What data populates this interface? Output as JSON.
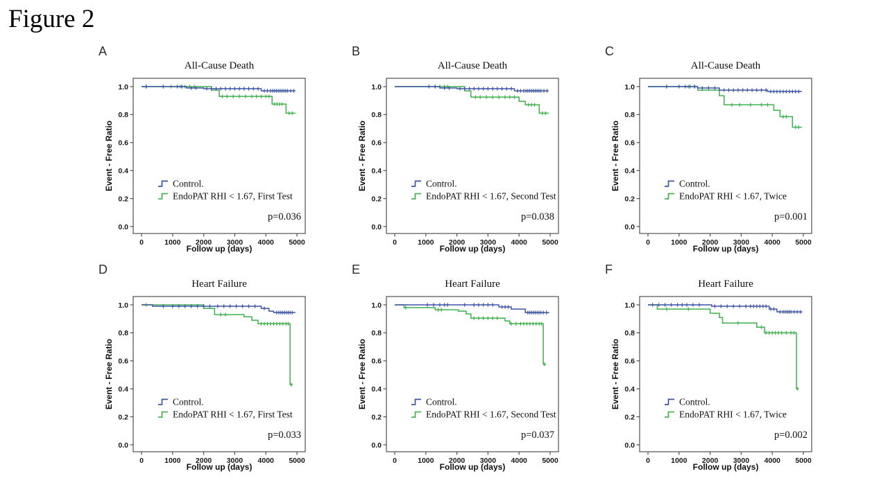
{
  "figure_label": "Figure 2",
  "chart_data": {
    "type": "line",
    "subtype": "kaplan-meier-step",
    "grid": false,
    "legend_position": "inside-left-lower",
    "x_label": "Follow up (days)",
    "y_label": "Event - Free Ratio",
    "x_range": [
      0,
      5000
    ],
    "y_range": [
      0.0,
      1.0
    ],
    "x_ticks": {
      "values": [
        0,
        1000,
        2000,
        3000,
        4000,
        5000
      ],
      "labels": [
        "0",
        "1000",
        "2000",
        "3000",
        "4000",
        "5000"
      ]
    },
    "y_ticks": {
      "values": [
        0.0,
        0.2,
        0.4,
        0.6,
        0.8,
        1.0
      ],
      "labels": [
        "0.0",
        "0.2",
        "0.4",
        "0.6",
        "0.8",
        "1.0"
      ]
    },
    "colors": {
      "control": "#3c55a5",
      "endopat": "#3cb14b",
      "frame": "#4f4f4f",
      "text": "#0e0e0e"
    },
    "panels": [
      {
        "letter": "A",
        "title": "All-Cause Death",
        "p_label": "p=0.036",
        "series": [
          {
            "name": "Control.",
            "color": "control",
            "steps": [
              [
                0,
                1.0
              ],
              [
                1450,
                0.99
              ],
              [
                2000,
                0.985
              ],
              [
                3850,
                0.97
              ],
              [
                4950,
                0.97
              ]
            ],
            "censors": [
              150,
              700,
              1150,
              1300,
              1600,
              1750,
              2100,
              2250,
              2400,
              2550,
              2700,
              2850,
              3000,
              3150,
              3300,
              3450,
              3600,
              3750,
              3950,
              4050,
              4150,
              4220,
              4280,
              4340,
              4400,
              4460,
              4520,
              4580,
              4640,
              4700,
              4800,
              4900
            ]
          },
          {
            "name": "EndoPAT RHI < 1.67,  First Test",
            "color": "endopat",
            "steps": [
              [
                0,
                1.0
              ],
              [
                2250,
                0.975
              ],
              [
                2500,
                0.93
              ],
              [
                4200,
                0.875
              ],
              [
                4650,
                0.81
              ],
              [
                4950,
                0.81
              ]
            ],
            "censors": [
              150,
              950,
              1250,
              1400,
              1550,
              1700,
              2600,
              2750,
              2950,
              3150,
              3350,
              3550,
              3700,
              3850,
              4000,
              4100,
              4280,
              4360,
              4440,
              4520,
              4750,
              4850
            ]
          }
        ]
      },
      {
        "letter": "B",
        "title": "All-Cause Death",
        "p_label": "p=0.038",
        "series": [
          {
            "name": "Control.",
            "color": "control",
            "steps": [
              [
                0,
                1.0
              ],
              [
                1450,
                0.99
              ],
              [
                2000,
                0.985
              ],
              [
                3850,
                0.97
              ],
              [
                4950,
                0.97
              ]
            ],
            "censors": [
              1100,
              1300,
              1600,
              1750,
              2100,
              2250,
              2400,
              2550,
              2700,
              2850,
              3000,
              3150,
              3300,
              3450,
              3600,
              3750,
              3950,
              4050,
              4150,
              4220,
              4280,
              4340,
              4400,
              4460,
              4520,
              4580,
              4640,
              4700,
              4800,
              4900
            ]
          },
          {
            "name": "EndoPAT RHI < 1.67,  Second Test",
            "color": "endopat",
            "steps": [
              [
                0,
                1.0
              ],
              [
                2250,
                0.97
              ],
              [
                2450,
                0.925
              ],
              [
                4000,
                0.895
              ],
              [
                4200,
                0.87
              ],
              [
                4650,
                0.81
              ],
              [
                4950,
                0.81
              ]
            ],
            "censors": [
              1300,
              1450,
              1600,
              1700,
              2600,
              2750,
              2950,
              3150,
              3350,
              3550,
              3700,
              3850,
              4300,
              4400,
              4500,
              4750,
              4850
            ]
          }
        ]
      },
      {
        "letter": "C",
        "title": "All-Cause Death",
        "p_label": "p=0.001",
        "series": [
          {
            "name": "Control.",
            "color": "control",
            "steps": [
              [
                0,
                1.0
              ],
              [
                1600,
                0.99
              ],
              [
                2300,
                0.975
              ],
              [
                3850,
                0.965
              ],
              [
                4950,
                0.965
              ]
            ],
            "censors": [
              600,
              1000,
              1200,
              1350,
              1500,
              1750,
              1950,
              2150,
              2450,
              2600,
              2750,
              2900,
              3050,
              3200,
              3350,
              3500,
              3650,
              3800,
              3950,
              4050,
              4150,
              4250,
              4350,
              4450,
              4550,
              4650,
              4750,
              4850
            ]
          },
          {
            "name": "EndoPAT RHI < 1.67,  Twice",
            "color": "endopat",
            "steps": [
              [
                0,
                1.0
              ],
              [
                1600,
                0.975
              ],
              [
                2300,
                0.935
              ],
              [
                2450,
                0.87
              ],
              [
                4050,
                0.83
              ],
              [
                4250,
                0.785
              ],
              [
                4650,
                0.71
              ],
              [
                4950,
                0.71
              ]
            ],
            "censors": [
              600,
              1300,
              1500,
              2700,
              2950,
              3300,
              3650,
              3850,
              4350,
              4450,
              4750,
              4850
            ]
          }
        ]
      },
      {
        "letter": "D",
        "title": "Heart Failure",
        "p_label": "p=0.033",
        "series": [
          {
            "name": "Control.",
            "color": "control",
            "steps": [
              [
                0,
                1.0
              ],
              [
                350,
                0.99
              ],
              [
                3850,
                0.975
              ],
              [
                4100,
                0.955
              ],
              [
                4250,
                0.945
              ],
              [
                4950,
                0.945
              ]
            ],
            "censors": [
              700,
              1000,
              1200,
              1400,
              1600,
              1800,
              2000,
              2200,
              2450,
              2650,
              2850,
              3050,
              3250,
              3450,
              3650,
              3950,
              4350,
              4420,
              4480,
              4540,
              4600,
              4660,
              4720,
              4780,
              4850
            ]
          },
          {
            "name": "EndoPAT RHI < 1.67,  First Test",
            "color": "endopat",
            "steps": [
              [
                0,
                1.0
              ],
              [
                2000,
                0.975
              ],
              [
                2350,
                0.93
              ],
              [
                3300,
                0.915
              ],
              [
                3550,
                0.89
              ],
              [
                3750,
                0.865
              ],
              [
                4780,
                0.43
              ],
              [
                4850,
                0.43
              ]
            ],
            "censors": [
              150,
              2550,
              2700,
              3850,
              3950,
              4050,
              4150,
              4250,
              4350,
              4450,
              4550,
              4650,
              4720,
              4820
            ]
          }
        ]
      },
      {
        "letter": "E",
        "title": "Heart Failure",
        "p_label": "p=0.037",
        "series": [
          {
            "name": "Control.",
            "color": "control",
            "steps": [
              [
                0,
                1.0
              ],
              [
                3350,
                0.985
              ],
              [
                3750,
                0.97
              ],
              [
                4200,
                0.945
              ],
              [
                4950,
                0.94
              ]
            ],
            "censors": [
              1050,
              1250,
              1450,
              1600,
              1700,
              2250,
              2550,
              2700,
              2850,
              3000,
              3150,
              3450,
              3550,
              3650,
              4280,
              4340,
              4400,
              4460,
              4520,
              4580,
              4640,
              4700,
              4780,
              4880
            ]
          },
          {
            "name": "EndoPAT RHI < 1.67,  Second Test",
            "color": "endopat",
            "steps": [
              [
                0,
                1.0
              ],
              [
                300,
                0.98
              ],
              [
                1300,
                0.965
              ],
              [
                2050,
                0.955
              ],
              [
                2300,
                0.935
              ],
              [
                2450,
                0.905
              ],
              [
                3550,
                0.885
              ],
              [
                3700,
                0.865
              ],
              [
                4780,
                0.575
              ],
              [
                4860,
                0.575
              ]
            ],
            "censors": [
              350,
              1400,
              1500,
              2550,
              2700,
              2850,
              3000,
              3150,
              3300,
              3750,
              3900,
              4050,
              4150,
              4250,
              4350,
              4450,
              4550,
              4650,
              4720,
              4820
            ]
          }
        ]
      },
      {
        "letter": "F",
        "title": "Heart Failure",
        "p_label": "p=0.002",
        "series": [
          {
            "name": "Control.",
            "color": "control",
            "steps": [
              [
                0,
                1.0
              ],
              [
                2050,
                0.99
              ],
              [
                3900,
                0.97
              ],
              [
                4150,
                0.95
              ],
              [
                4950,
                0.945
              ]
            ],
            "censors": [
              150,
              350,
              550,
              750,
              950,
              1100,
              1250,
              1450,
              1650,
              2150,
              2350,
              2550,
              2750,
              2950,
              3150,
              3300,
              3400,
              3500,
              3600,
              3700,
              3800,
              3950,
              4050,
              4250,
              4350,
              4420,
              4480,
              4540,
              4600,
              4700,
              4800,
              4900
            ]
          },
          {
            "name": "EndoPAT RHI < 1.67,  Twice",
            "color": "endopat",
            "steps": [
              [
                0,
                1.0
              ],
              [
                300,
                0.97
              ],
              [
                2000,
                0.94
              ],
              [
                2300,
                0.91
              ],
              [
                2400,
                0.87
              ],
              [
                3500,
                0.84
              ],
              [
                3750,
                0.8
              ],
              [
                4780,
                0.4
              ],
              [
                4840,
                0.4
              ]
            ],
            "censors": [
              600,
              1300,
              2900,
              3650,
              3800,
              3900,
              4000,
              4100,
              4200,
              4300,
              4450,
              4600,
              4700,
              4810
            ]
          }
        ]
      }
    ]
  }
}
